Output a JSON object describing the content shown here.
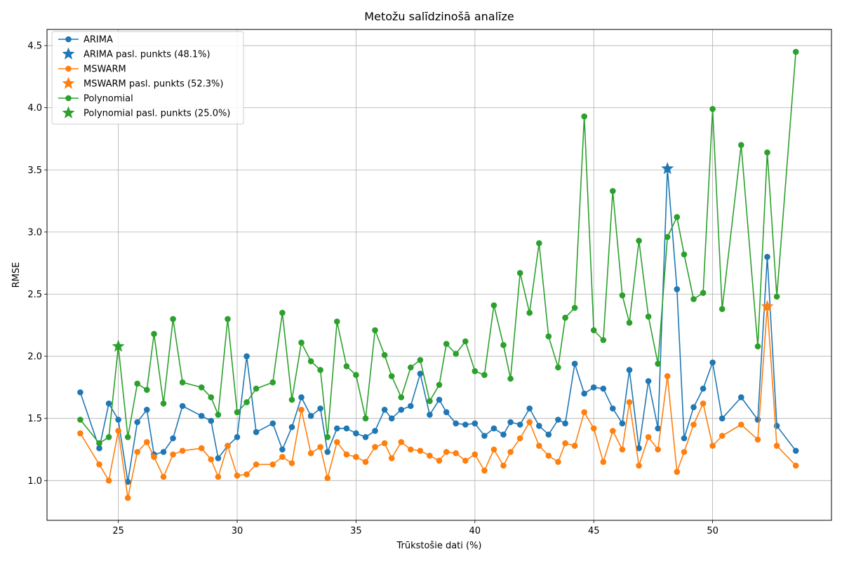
{
  "chart_data": {
    "type": "line",
    "title": "Metožu salīdzinošā analīze",
    "xlabel": "Trūkstošie dati (%)",
    "ylabel": "RMSE",
    "xlim": [
      22.0,
      55.0
    ],
    "ylim": [
      0.68,
      4.63
    ],
    "xticks": [
      25,
      30,
      35,
      40,
      45,
      50
    ],
    "yticks": [
      1.0,
      1.5,
      2.0,
      2.5,
      3.0,
      3.5,
      4.0,
      4.5
    ],
    "x_tick_labels": [
      "25",
      "30",
      "35",
      "40",
      "45",
      "50"
    ],
    "y_tick_labels": [
      "1.0",
      "1.5",
      "2.0",
      "2.5",
      "3.0",
      "3.5",
      "4.0",
      "4.5"
    ],
    "grid": true,
    "legend_position": "top-left",
    "x": [
      23.4,
      24.2,
      24.6,
      25.0,
      25.4,
      25.8,
      26.2,
      26.5,
      26.9,
      27.3,
      27.7,
      28.5,
      28.9,
      29.2,
      29.6,
      30.0,
      30.4,
      30.8,
      31.5,
      31.9,
      32.3,
      32.7,
      33.1,
      33.5,
      33.8,
      34.2,
      34.6,
      35.0,
      35.4,
      35.8,
      36.2,
      36.5,
      36.9,
      37.3,
      37.7,
      38.1,
      38.5,
      38.8,
      39.2,
      39.6,
      40.0,
      40.4,
      40.8,
      41.2,
      41.5,
      41.9,
      42.3,
      42.7,
      43.1,
      43.5,
      43.8,
      44.2,
      44.6,
      45.0,
      45.4,
      45.8,
      46.2,
      46.5,
      46.9,
      47.3,
      47.7,
      48.1,
      48.5,
      48.8,
      49.2,
      49.6,
      50.0,
      50.4,
      51.2,
      51.9,
      52.3,
      52.7,
      53.5
    ],
    "series": [
      {
        "name": "ARIMA",
        "color": "#1f77b4",
        "values": [
          1.71,
          1.26,
          1.62,
          1.49,
          0.99,
          1.47,
          1.57,
          1.21,
          1.23,
          1.34,
          1.6,
          1.52,
          1.48,
          1.18,
          1.28,
          1.35,
          2.0,
          1.39,
          1.46,
          1.25,
          1.43,
          1.67,
          1.52,
          1.58,
          1.23,
          1.42,
          1.42,
          1.38,
          1.35,
          1.4,
          1.57,
          1.5,
          1.57,
          1.6,
          1.86,
          1.53,
          1.65,
          1.55,
          1.46,
          1.45,
          1.46,
          1.36,
          1.42,
          1.37,
          1.47,
          1.45,
          1.58,
          1.44,
          1.37,
          1.49,
          1.46,
          1.94,
          1.7,
          1.75,
          1.74,
          1.58,
          1.46,
          1.89,
          1.26,
          1.8,
          1.42,
          3.51,
          2.54,
          1.34,
          1.59,
          1.74,
          1.95,
          1.5,
          1.67,
          1.49,
          2.8,
          1.44,
          1.24
        ],
        "change_point": {
          "x": 48.1,
          "y": 3.51,
          "label": "ARIMA pasl. punkts (48.1%)"
        }
      },
      {
        "name": "MSWARM",
        "color": "#ff7f0e",
        "values": [
          1.38,
          1.13,
          1.0,
          1.4,
          0.86,
          1.23,
          1.31,
          1.19,
          1.03,
          1.21,
          1.24,
          1.26,
          1.17,
          1.03,
          1.28,
          1.04,
          1.05,
          1.13,
          1.13,
          1.19,
          1.14,
          1.57,
          1.22,
          1.27,
          1.02,
          1.31,
          1.21,
          1.19,
          1.15,
          1.27,
          1.3,
          1.18,
          1.31,
          1.25,
          1.24,
          1.2,
          1.16,
          1.23,
          1.22,
          1.16,
          1.21,
          1.08,
          1.25,
          1.12,
          1.23,
          1.34,
          1.47,
          1.28,
          1.2,
          1.15,
          1.3,
          1.28,
          1.55,
          1.42,
          1.15,
          1.4,
          1.25,
          1.63,
          1.12,
          1.35,
          1.25,
          1.84,
          1.07,
          1.23,
          1.45,
          1.62,
          1.28,
          1.36,
          1.45,
          1.33,
          2.4,
          1.28,
          1.12
        ],
        "change_point": {
          "x": 52.3,
          "y": 2.4,
          "label": "MSWARM pasl. punkts (52.3%)"
        }
      },
      {
        "name": "Polynomial",
        "color": "#2ca02c",
        "values": [
          1.49,
          1.3,
          1.35,
          2.08,
          1.35,
          1.78,
          1.73,
          2.18,
          1.62,
          2.3,
          1.79,
          1.75,
          1.67,
          1.53,
          2.3,
          1.55,
          1.63,
          1.74,
          1.79,
          2.35,
          1.65,
          2.11,
          1.96,
          1.89,
          1.35,
          2.28,
          1.92,
          1.85,
          1.5,
          2.21,
          2.01,
          1.84,
          1.67,
          1.91,
          1.97,
          1.64,
          1.77,
          2.1,
          2.02,
          2.12,
          1.88,
          1.85,
          2.41,
          2.09,
          1.82,
          2.67,
          2.35,
          2.91,
          2.16,
          1.91,
          2.31,
          2.39,
          3.93,
          2.21,
          2.13,
          3.33,
          2.49,
          2.27,
          2.93,
          2.32,
          1.94,
          2.96,
          3.12,
          2.82,
          2.46,
          2.51,
          3.99,
          2.38,
          3.7,
          2.08,
          3.64,
          2.48,
          4.45
        ],
        "change_point": {
          "x": 25.0,
          "y": 2.08,
          "label": "Polynomial pasl. punkts (25.0%)"
        }
      }
    ]
  }
}
